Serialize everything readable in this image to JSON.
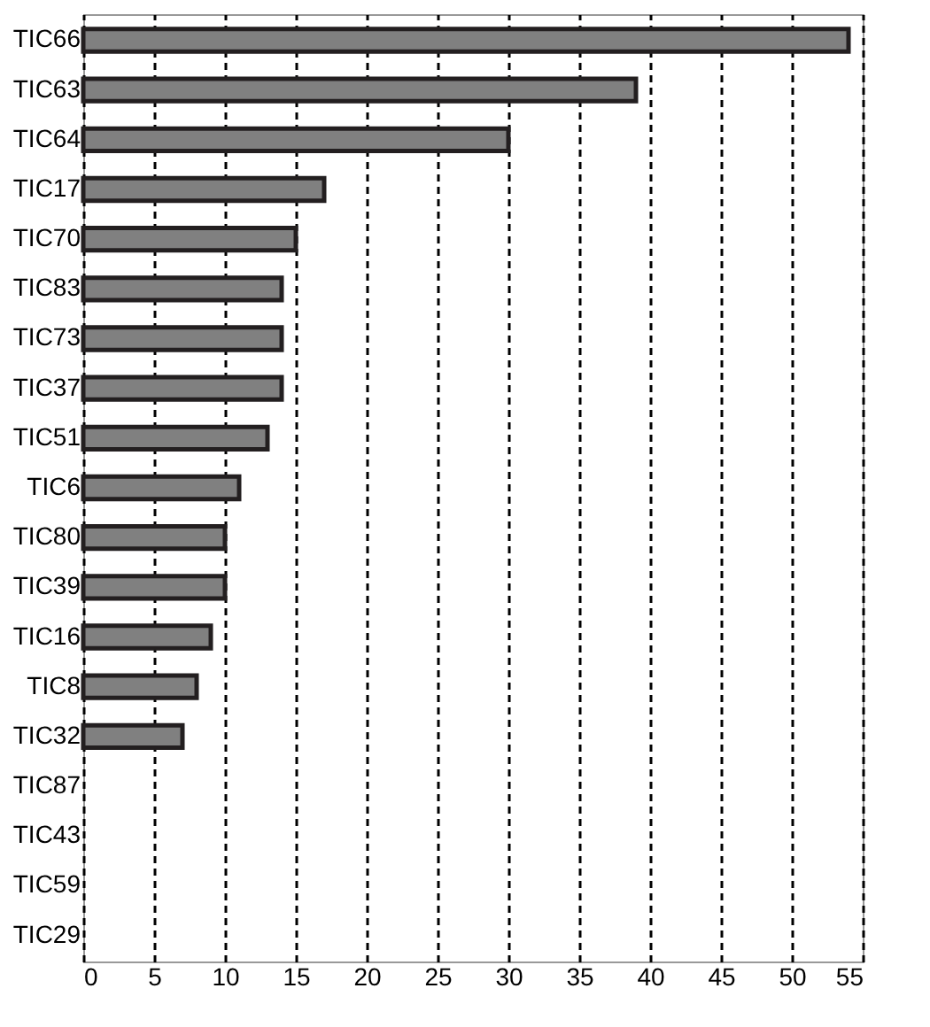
{
  "chart_data": {
    "type": "bar",
    "orientation": "horizontal",
    "categories": [
      "TIC66",
      "TIC63",
      "TIC64",
      "TIC17",
      "TIC70",
      "TIC83",
      "TIC73",
      "TIC37",
      "TIC51",
      "TIC6",
      "TIC80",
      "TIC39",
      "TIC16",
      "TIC8",
      "TIC32",
      "TIC87",
      "TIC43",
      "TIC59",
      "TIC29"
    ],
    "values": [
      54,
      39,
      30,
      17,
      15,
      14,
      14,
      14,
      13,
      11,
      10,
      10,
      9,
      8,
      7,
      null,
      null,
      null,
      null
    ],
    "color": "#808080",
    "xlim": [
      0,
      55
    ],
    "xticks": [
      0,
      5,
      10,
      15,
      20,
      25,
      30,
      35,
      40,
      45,
      50,
      55
    ],
    "grid": "x"
  }
}
